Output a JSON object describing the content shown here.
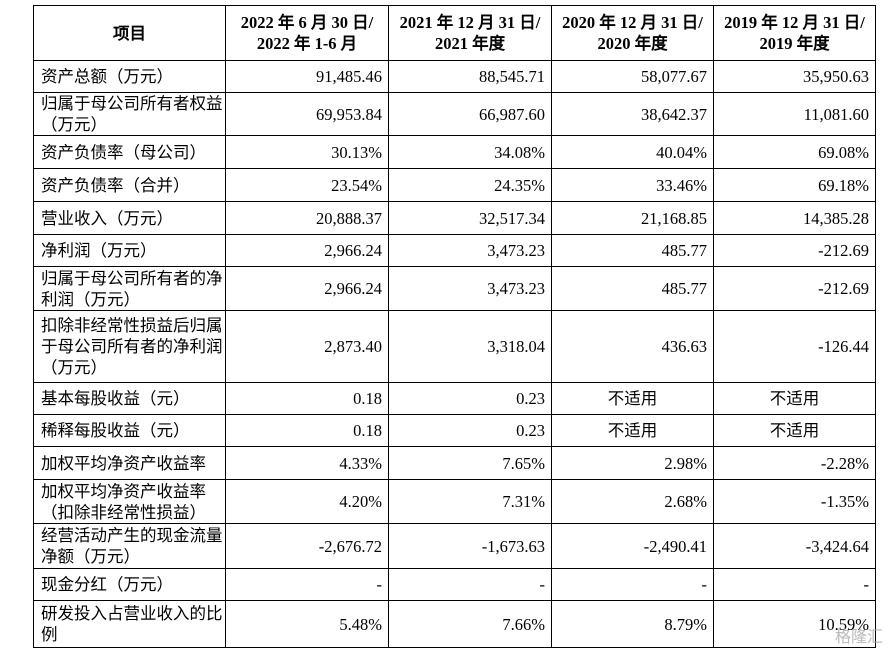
{
  "table": {
    "header": [
      [
        "项目"
      ],
      [
        "2022 年 6 月 30 日/",
        "2022 年 1-6 月"
      ],
      [
        "2021 年 12 月 31 日/",
        "2021 年度"
      ],
      [
        "2020 年 12 月 31 日/",
        "2020 年度"
      ],
      [
        "2019 年 12 月 31 日/",
        "2019 年度"
      ]
    ],
    "rows": [
      [
        "资产总额（万元）",
        "91,485.46",
        "88,545.71",
        "58,077.67",
        "35,950.63"
      ],
      [
        "归属于母公司所有者权益（万元）",
        "69,953.84",
        "66,987.60",
        "38,642.37",
        "11,081.60"
      ],
      [
        "资产负债率（母公司）",
        "30.13%",
        "34.08%",
        "40.04%",
        "69.08%"
      ],
      [
        "资产负债率（合并）",
        "23.54%",
        "24.35%",
        "33.46%",
        "69.18%"
      ],
      [
        "营业收入（万元）",
        "20,888.37",
        "32,517.34",
        "21,168.85",
        "14,385.28"
      ],
      [
        "净利润（万元）",
        "2,966.24",
        "3,473.23",
        "485.77",
        "-212.69"
      ],
      [
        "归属于母公司所有者的净利润（万元）",
        "2,966.24",
        "3,473.23",
        "485.77",
        "-212.69"
      ],
      [
        "扣除非经常性损益后归属于母公司所有者的净利润（万元）",
        "2,873.40",
        "3,318.04",
        "436.63",
        "-126.44"
      ],
      [
        "基本每股收益（元）",
        "0.18",
        "0.23",
        "不适用",
        "不适用"
      ],
      [
        "稀释每股收益（元）",
        "0.18",
        "0.23",
        "不适用",
        "不适用"
      ],
      [
        "加权平均净资产收益率",
        "4.33%",
        "7.65%",
        "2.98%",
        "-2.28%"
      ],
      [
        "加权平均净资产收益率（扣除非经常性损益）",
        "4.20%",
        "7.31%",
        "2.68%",
        "-1.35%"
      ],
      [
        "经营活动产生的现金流量净额（万元）",
        "-2,676.72",
        "-1,673.63",
        "-2,490.41",
        "-3,424.64"
      ],
      [
        "现金分红（万元）",
        "-",
        "-",
        "-",
        "-"
      ],
      [
        "研发投入占营业收入的比例",
        "5.48%",
        "7.66%",
        "8.79%",
        "10.59%"
      ]
    ]
  },
  "watermark": "格隆汇"
}
